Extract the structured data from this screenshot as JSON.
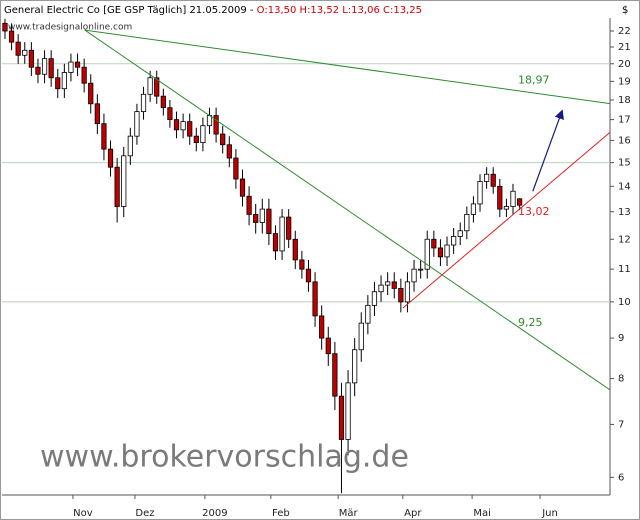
{
  "chart_data": {
    "type": "candlestick",
    "title": "General Electric Co [GE GSP  Täglich] 21.05.2009 - ",
    "ohlc_text": "O:13,50 H:13,52 L:13,06 C:13,25",
    "source": "www.tradesignalonline.com",
    "currency": "$",
    "watermark": "www.brokervorschlag.de",
    "log_scale": true,
    "up_color": "#ffffff",
    "down_color": "#c00000",
    "open": [
      22.5,
      22.0,
      21.3,
      20.5,
      20.8,
      19.8,
      19.4,
      20.3,
      19.2,
      18.6,
      19.5,
      20.1,
      19.8,
      18.9,
      17.8,
      16.8,
      15.6,
      14.8,
      13.2,
      15.3,
      16.2,
      17.4,
      18.3,
      19.2,
      18.2,
      17.6,
      17.0,
      16.5,
      16.9,
      16.2,
      15.9,
      16.7,
      17.2,
      16.3,
      15.8,
      15.2,
      14.3,
      13.6,
      12.9,
      12.6,
      13.1,
      12.2,
      11.6,
      12.8,
      12.0,
      11.3,
      11.0,
      10.6,
      9.6,
      9.0,
      8.6,
      7.6,
      6.7,
      7.9,
      8.7,
      9.4,
      9.9,
      10.3,
      10.5,
      10.6,
      10.4,
      10.0,
      10.6,
      11.0,
      11.0,
      12.0,
      11.7,
      11.4,
      11.8,
      12.1,
      12.3,
      12.9,
      13.3,
      14.2,
      14.5,
      14.0,
      13.1,
      13.2,
      13.5
    ],
    "high": [
      22.8,
      22.5,
      21.8,
      21.3,
      21.3,
      20.3,
      20.8,
      20.8,
      19.7,
      20.0,
      20.6,
      20.6,
      20.3,
      19.4,
      18.3,
      17.3,
      16.0,
      15.2,
      15.7,
      16.6,
      17.8,
      18.7,
      19.6,
      19.6,
      18.6,
      18.0,
      17.4,
      17.3,
      17.3,
      16.6,
      17.1,
      17.6,
      17.6,
      16.7,
      16.2,
      15.6,
      14.7,
      14.0,
      13.3,
      13.5,
      13.5,
      12.5,
      13.1,
      13.1,
      12.3,
      11.6,
      11.3,
      10.9,
      9.9,
      9.3,
      8.9,
      7.9,
      8.2,
      9.0,
      9.7,
      10.2,
      10.6,
      10.8,
      10.9,
      10.9,
      10.7,
      10.9,
      11.3,
      11.3,
      12.3,
      12.3,
      12.0,
      12.1,
      12.4,
      12.6,
      13.2,
      13.6,
      14.5,
      14.8,
      14.8,
      14.3,
      13.5,
      14.1,
      13.52
    ],
    "low": [
      21.5,
      20.8,
      20.0,
      20.0,
      19.3,
      18.9,
      18.9,
      18.7,
      18.1,
      18.1,
      19.0,
      19.3,
      18.4,
      17.3,
      16.3,
      15.1,
      14.4,
      12.6,
      12.8,
      14.9,
      15.8,
      17.0,
      17.9,
      17.8,
      17.2,
      16.6,
      16.1,
      16.1,
      15.8,
      15.5,
      15.5,
      16.3,
      15.9,
      15.4,
      14.8,
      13.9,
      13.2,
      12.5,
      12.2,
      12.2,
      11.8,
      11.3,
      11.3,
      11.7,
      11.0,
      10.7,
      10.3,
      9.3,
      8.7,
      8.3,
      7.3,
      5.73,
      6.4,
      7.6,
      8.4,
      9.1,
      9.6,
      10.0,
      10.2,
      10.1,
      9.7,
      9.7,
      10.3,
      10.7,
      10.7,
      11.4,
      11.1,
      11.1,
      11.5,
      11.8,
      12.0,
      12.6,
      13.0,
      13.9,
      13.7,
      12.8,
      12.8,
      12.9,
      13.06
    ],
    "close": [
      22.0,
      21.3,
      20.5,
      20.8,
      19.8,
      19.4,
      20.3,
      19.2,
      18.6,
      19.5,
      20.1,
      19.8,
      18.9,
      17.8,
      16.8,
      15.6,
      14.8,
      13.2,
      15.3,
      16.2,
      17.4,
      18.3,
      19.2,
      18.2,
      17.6,
      17.0,
      16.5,
      16.9,
      16.2,
      15.9,
      16.7,
      17.2,
      16.3,
      15.8,
      15.2,
      14.3,
      13.6,
      12.9,
      12.6,
      13.1,
      12.2,
      11.6,
      12.8,
      12.0,
      11.3,
      11.0,
      10.6,
      9.6,
      9.0,
      8.6,
      7.6,
      6.7,
      7.9,
      8.7,
      9.4,
      9.9,
      10.3,
      10.5,
      10.6,
      10.4,
      10.0,
      10.6,
      11.0,
      11.0,
      12.0,
      11.7,
      11.4,
      11.8,
      12.1,
      12.3,
      12.9,
      13.3,
      14.2,
      14.5,
      14.0,
      13.1,
      13.2,
      13.8,
      13.25
    ],
    "xlim": [
      -0.45,
      91.7
    ],
    "xticks": [
      {
        "value": 10.3,
        "label": "Nov"
      },
      {
        "value": 19.7,
        "label": "Dez"
      },
      {
        "value": 30.3,
        "label": "2009"
      },
      {
        "value": 40.3,
        "label": "Feb"
      },
      {
        "value": 50.5,
        "label": "Mär"
      },
      {
        "value": 60.3,
        "label": "Apr"
      },
      {
        "value": 70.8,
        "label": "Mai"
      },
      {
        "value": 81.1,
        "label": "Jun"
      }
    ],
    "ylim": [
      5.7,
      22.85
    ],
    "yticks": [
      6,
      7,
      8,
      9,
      10,
      11,
      12,
      13,
      14,
      15,
      16,
      17,
      18,
      19,
      20,
      21,
      22
    ],
    "hlines": [
      10,
      15,
      20
    ],
    "hline_color": "#b9d3b9",
    "lines": [
      {
        "color": "#2e8b2e",
        "points": [
          [
            12.1,
            22.06
          ],
          [
            91.7,
            17.81
          ]
        ],
        "label": "18,97"
      },
      {
        "color": "#2e8b2e",
        "points": [
          [
            12.1,
            22.06
          ],
          [
            91.7,
            7.74
          ]
        ],
        "label": "9,25"
      },
      {
        "color": "#e02020",
        "points": [
          [
            60.3,
            9.82
          ],
          [
            91.7,
            16.38
          ]
        ],
        "label": "13,02"
      }
    ],
    "arrow": {
      "color": "#1a1a80",
      "points": [
        [
          80.0,
          13.8
        ],
        [
          84.4,
          17.4
        ]
      ]
    }
  }
}
